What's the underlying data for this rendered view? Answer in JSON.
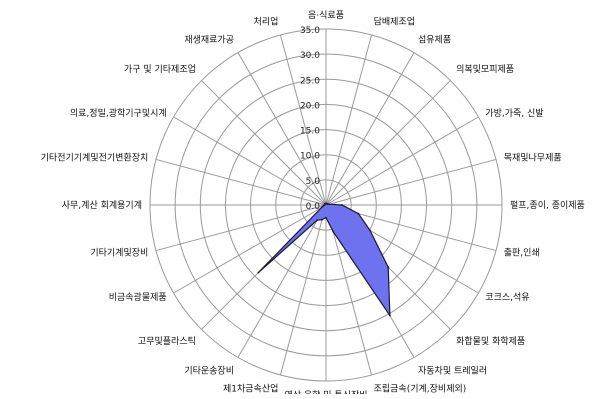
{
  "chart_data": {
    "type": "radar",
    "title": "",
    "categories": [
      "음·식료품",
      "담배제조업",
      "섬유제품",
      "의복및모피제품",
      "가방,가죽, 신발",
      "목재및나무제품",
      "펄프,종이, 종이제품",
      "출판,인쇄",
      "코크스,석유",
      "화합물및 화학제품",
      "자동차및 트레일러",
      "조립금속(기계,장비제외)",
      "영상,음향 및 통신장비",
      "제1차금속산업",
      "기타운송장비",
      "고무및플라스틱",
      "비금속광물제품",
      "기타기계및장비",
      "사무,계산 회계용기계",
      "기타전기기계및전기변환장치",
      "의료,정밀,광학기구및시계",
      "가구 및 기타제조업",
      "재생재료가공",
      "처리업"
    ],
    "series": [
      {
        "values": [
          0.3,
          0.3,
          0.3,
          0.3,
          0.4,
          0.6,
          3.2,
          6.7,
          10.1,
          17.5,
          25.4,
          5.5,
          2.5,
          3.0,
          3.5,
          19.0,
          1.0,
          0.5,
          0.3,
          0.3,
          0.3,
          0.3,
          0.3,
          0.3
        ],
        "color": "#6f72ee",
        "stroke": "#1a1a33"
      }
    ],
    "r_ticks": [
      "0.0",
      "5.0",
      "10.0",
      "15.0",
      "20.0",
      "25.0",
      "30.0",
      "35.0"
    ],
    "rlim": [
      0,
      35
    ],
    "grid": true,
    "legend": false
  }
}
